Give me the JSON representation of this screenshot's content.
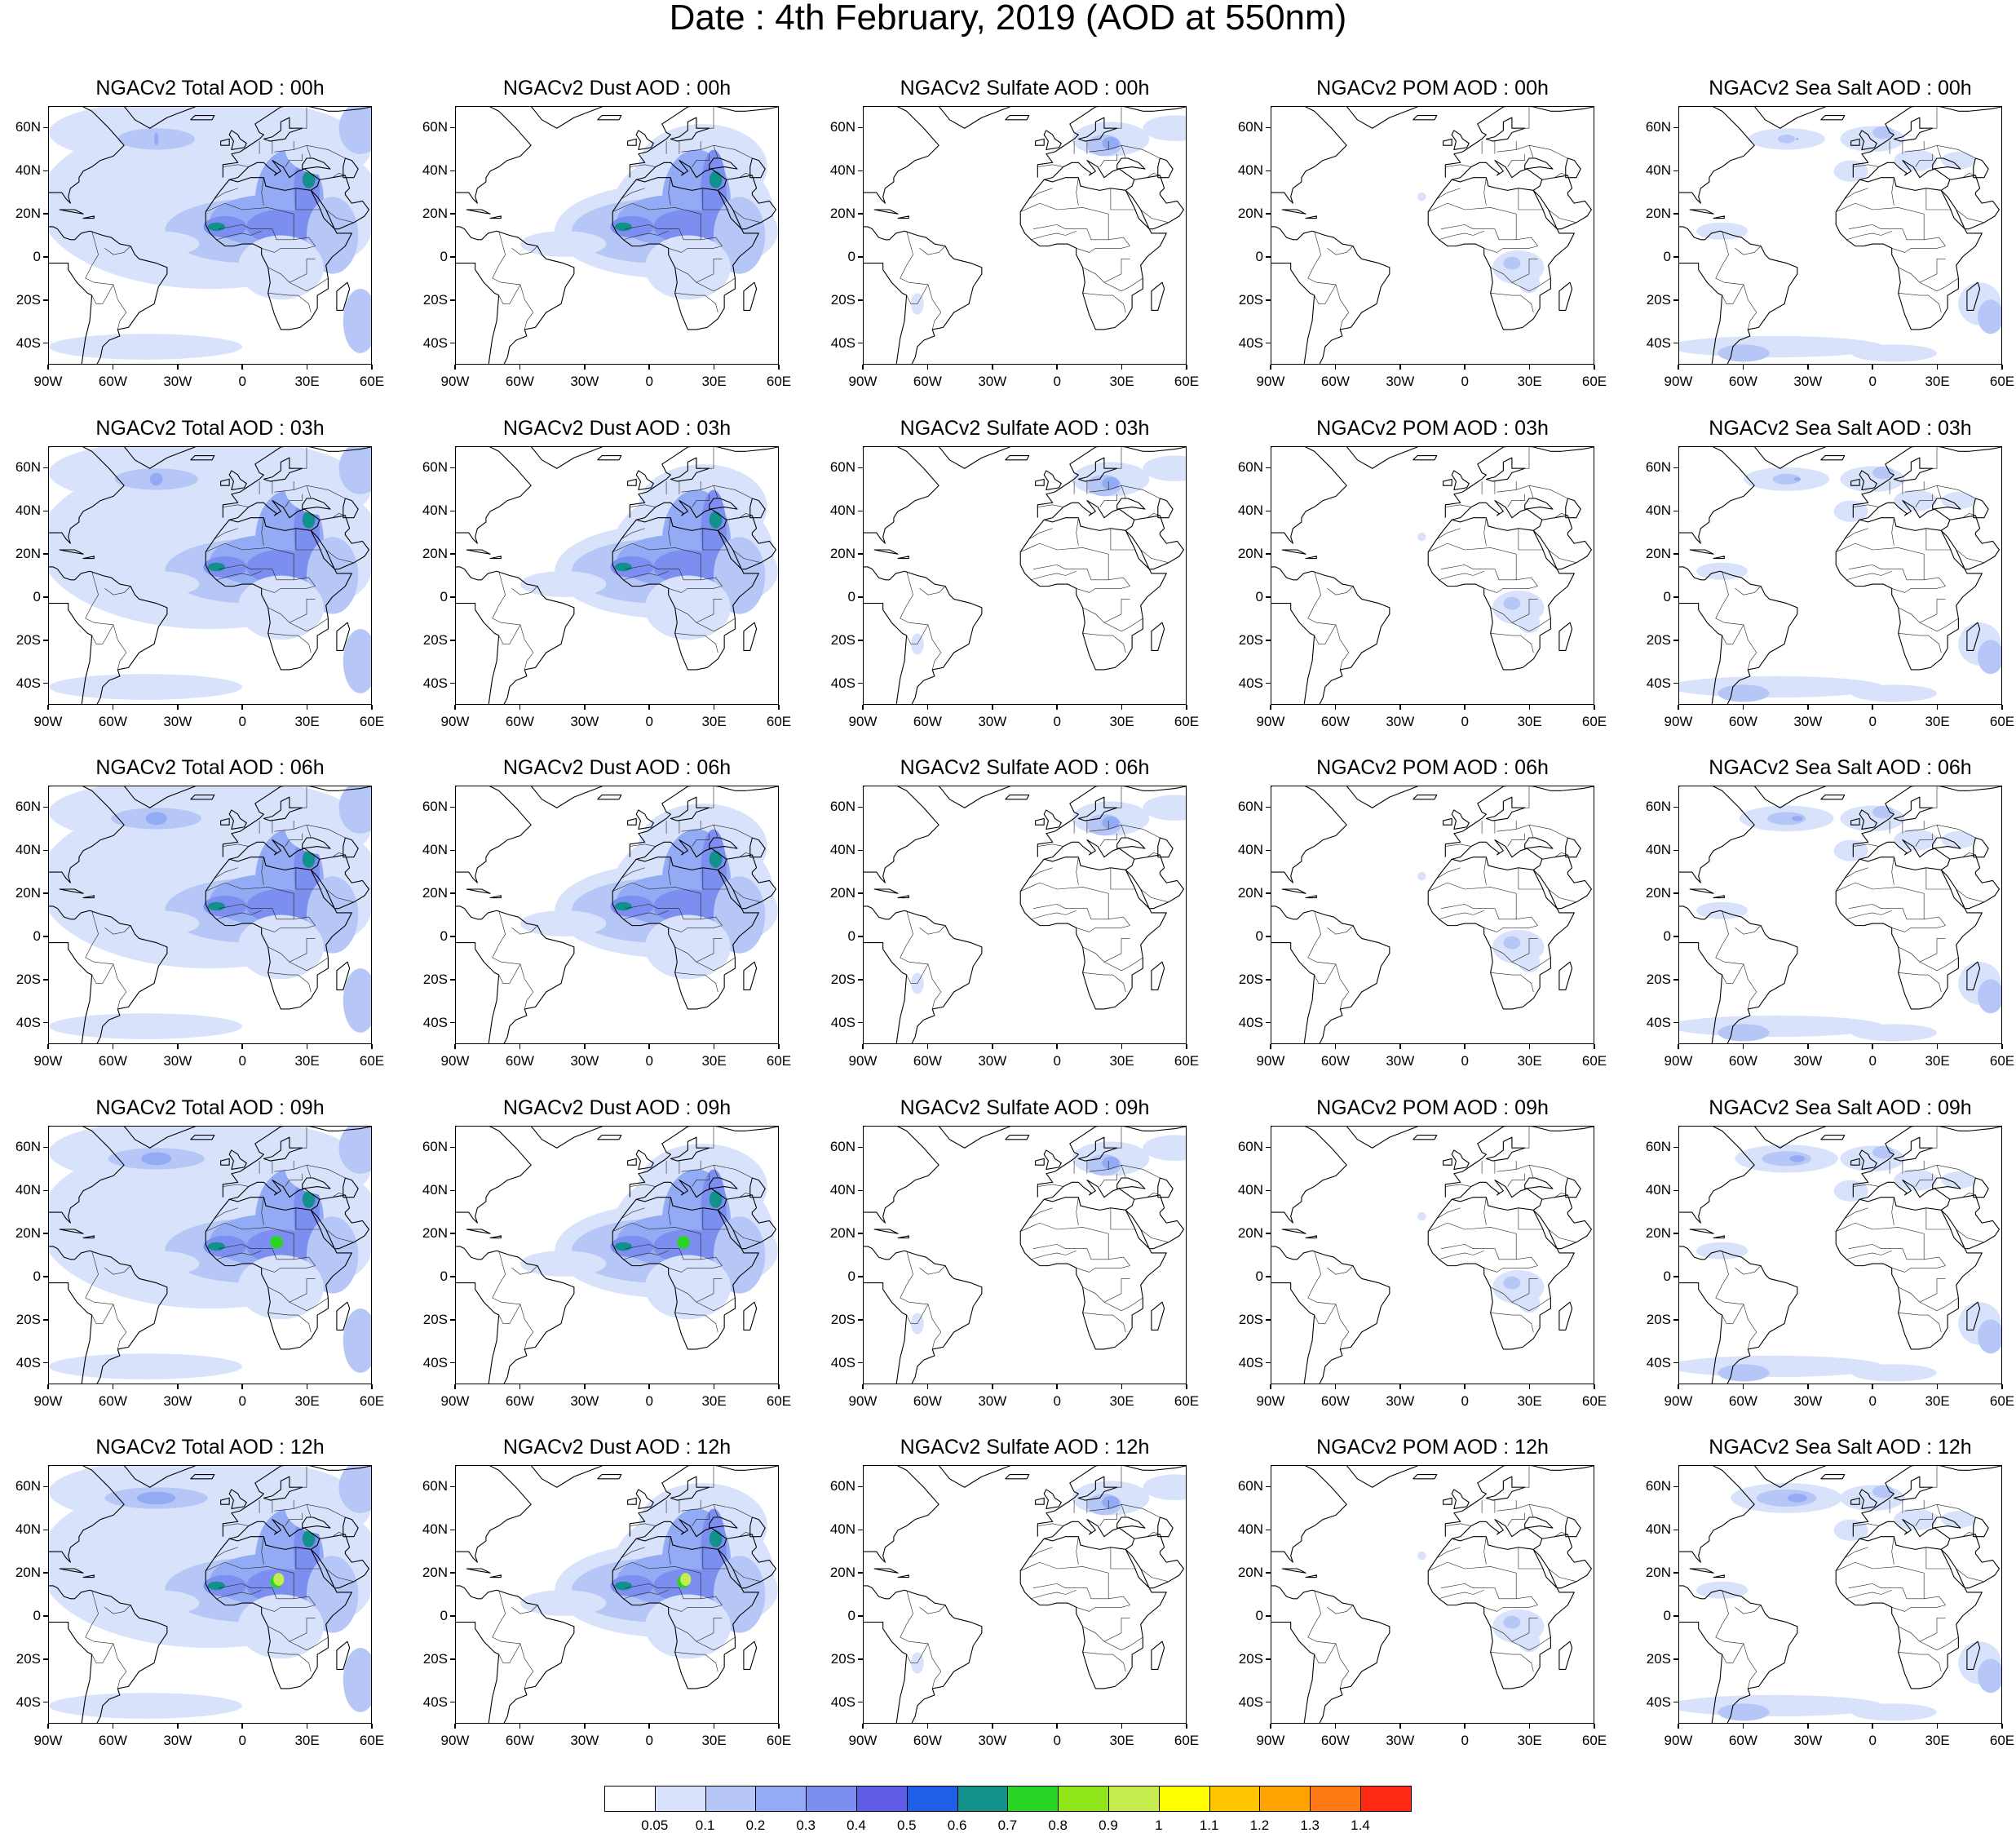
{
  "title": "Date : 4th February, 2019 (AOD at 550nm)",
  "axes": {
    "lat_labels": [
      "60N",
      "40N",
      "20N",
      "0",
      "20S",
      "40S"
    ],
    "lat_values": [
      60,
      40,
      20,
      0,
      -20,
      -40
    ],
    "lon_labels": [
      "90W",
      "60W",
      "30W",
      "0",
      "30E",
      "60E"
    ],
    "lon_values": [
      -90,
      -60,
      -30,
      0,
      30,
      60
    ],
    "lat_range": [
      -50,
      70
    ],
    "lon_range": [
      -90,
      60
    ]
  },
  "colorbar": {
    "colors": [
      "#ffffff",
      "#d8e2fb",
      "#b6c7f7",
      "#93aaf5",
      "#7c8ff0",
      "#5f5ce6",
      "#1f5fe8",
      "#12908c",
      "#2ad424",
      "#90e61a",
      "#c6ec50",
      "#ffff00",
      "#ffc300",
      "#ffa300",
      "#ff7a14",
      "#ff2a14"
    ],
    "labels": [
      "0.05",
      "0.1",
      "0.2",
      "0.3",
      "0.4",
      "0.5",
      "0.6",
      "0.7",
      "0.8",
      "0.9",
      "1",
      "1.1",
      "1.2",
      "1.3",
      "1.4"
    ]
  },
  "panels": [
    {
      "title": "NGACv2 Total AOD : 00h",
      "kind": "total",
      "hour": 0
    },
    {
      "title": "NGACv2 Dust AOD : 00h",
      "kind": "dust",
      "hour": 0
    },
    {
      "title": "NGACv2 Sulfate AOD : 00h",
      "kind": "sulfate",
      "hour": 0
    },
    {
      "title": "NGACv2 POM AOD : 00h",
      "kind": "pom",
      "hour": 0
    },
    {
      "title": "NGACv2 Sea Salt AOD : 00h",
      "kind": "seasalt",
      "hour": 0
    },
    {
      "title": "NGACv2 Total AOD : 03h",
      "kind": "total",
      "hour": 3
    },
    {
      "title": "NGACv2 Dust AOD : 03h",
      "kind": "dust",
      "hour": 3
    },
    {
      "title": "NGACv2 Sulfate AOD : 03h",
      "kind": "sulfate",
      "hour": 3
    },
    {
      "title": "NGACv2 POM AOD : 03h",
      "kind": "pom",
      "hour": 3
    },
    {
      "title": "NGACv2 Sea Salt AOD : 03h",
      "kind": "seasalt",
      "hour": 3
    },
    {
      "title": "NGACv2 Total AOD : 06h",
      "kind": "total",
      "hour": 6
    },
    {
      "title": "NGACv2 Dust AOD : 06h",
      "kind": "dust",
      "hour": 6
    },
    {
      "title": "NGACv2 Sulfate AOD : 06h",
      "kind": "sulfate",
      "hour": 6
    },
    {
      "title": "NGACv2 POM AOD : 06h",
      "kind": "pom",
      "hour": 6
    },
    {
      "title": "NGACv2 Sea Salt AOD : 06h",
      "kind": "seasalt",
      "hour": 6
    },
    {
      "title": "NGACv2 Total AOD : 09h",
      "kind": "total",
      "hour": 9
    },
    {
      "title": "NGACv2 Dust AOD : 09h",
      "kind": "dust",
      "hour": 9
    },
    {
      "title": "NGACv2 Sulfate AOD : 09h",
      "kind": "sulfate",
      "hour": 9
    },
    {
      "title": "NGACv2 POM AOD : 09h",
      "kind": "pom",
      "hour": 9
    },
    {
      "title": "NGACv2 Sea Salt  AOD : 09h",
      "kind": "seasalt",
      "hour": 9
    },
    {
      "title": "NGACv2 Total AOD  : 12h",
      "kind": "total",
      "hour": 12
    },
    {
      "title": "NGACv2 Dust AOD : 12h",
      "kind": "dust",
      "hour": 12
    },
    {
      "title": "NGACv2 Sulfate AOD : 12h",
      "kind": "sulfate",
      "hour": 12
    },
    {
      "title": "NGACv2 POM  AOD : 12h",
      "kind": "pom",
      "hour": 12
    },
    {
      "title": "NGACv2 Sea Salt  AOD : 12h",
      "kind": "seasalt",
      "hour": 12
    }
  ]
}
